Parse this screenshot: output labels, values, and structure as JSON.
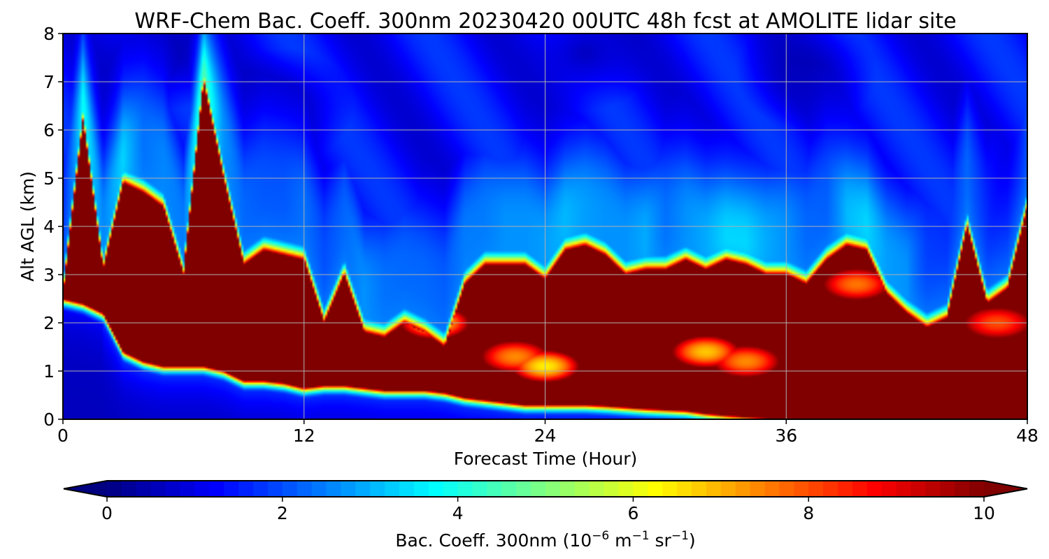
{
  "chart_data": {
    "type": "heatmap",
    "title": "WRF-Chem Bac. Coeff. 300nm  20230420 00UTC 48h fcst at AMOLITE lidar site",
    "xlabel": "Forecast Time (Hour)",
    "ylabel": "Alt AGL (km)",
    "xlim": [
      0,
      48
    ],
    "ylim": [
      0,
      8
    ],
    "x_ticks": [
      "0",
      "12",
      "24",
      "36",
      "48"
    ],
    "y_ticks": [
      "0",
      "1",
      "2",
      "3",
      "4",
      "5",
      "6",
      "7",
      "8"
    ],
    "grid": true,
    "colormap": "jet",
    "colorbar": {
      "orientation": "horizontal",
      "label_parts": [
        "Bac. Coeff. 300nm  (10",
        "−6",
        " m",
        "−1",
        " sr",
        "−1",
        ")"
      ],
      "min": 0,
      "max": 10,
      "ticks": [
        "0",
        "2",
        "4",
        "6",
        "8",
        "10"
      ],
      "extend": "both"
    },
    "x": [
      0,
      1,
      2,
      3,
      4,
      5,
      6,
      7,
      8,
      9,
      10,
      11,
      12,
      13,
      14,
      15,
      16,
      17,
      18,
      19,
      20,
      21,
      22,
      23,
      24,
      25,
      26,
      27,
      28,
      29,
      30,
      31,
      32,
      33,
      34,
      35,
      36,
      37,
      38,
      39,
      40,
      41,
      42,
      43,
      44,
      45,
      46,
      47,
      48
    ],
    "top_of_layer_km": [
      2.6,
      6.2,
      3.1,
      4.9,
      4.7,
      4.4,
      3.0,
      7.0,
      5.0,
      3.2,
      3.5,
      3.4,
      3.3,
      2.0,
      3.0,
      1.8,
      1.7,
      2.0,
      1.8,
      1.5,
      2.8,
      3.2,
      3.2,
      3.2,
      2.9,
      3.5,
      3.6,
      3.4,
      3.0,
      3.1,
      3.1,
      3.3,
      3.1,
      3.3,
      3.2,
      3.0,
      3.0,
      2.8,
      3.3,
      3.6,
      3.5,
      2.6,
      2.2,
      1.9,
      2.1,
      4.0,
      2.4,
      2.7,
      4.4
    ],
    "bottom_of_layer_km": [
      2.5,
      2.4,
      2.2,
      1.4,
      1.2,
      1.1,
      1.1,
      1.1,
      1.0,
      0.8,
      0.8,
      0.75,
      0.65,
      0.7,
      0.7,
      0.65,
      0.6,
      0.6,
      0.6,
      0.55,
      0.45,
      0.4,
      0.35,
      0.3,
      0.3,
      0.3,
      0.3,
      0.28,
      0.25,
      0.22,
      0.2,
      0.18,
      0.12,
      0.08,
      0.05,
      0.02,
      0.0,
      0.0,
      0.0,
      0.0,
      0.0,
      0.0,
      0.0,
      0.0,
      0.0,
      0.0,
      0.0,
      0.0,
      0.0
    ],
    "plume_center_km": [
      5.5,
      7.2,
      5.0,
      6.2,
      6.8,
      6.3,
      5.0,
      7.5,
      6.8,
      5.4,
      5.9,
      5.8,
      5.4,
      4.5,
      5.2,
      3.6,
      3.8,
      4.2,
      4.0,
      3.8,
      4.8,
      5.2,
      5.0,
      5.0,
      4.6,
      5.0,
      5.3,
      5.2,
      4.8,
      4.7,
      5.2,
      5.1,
      4.7,
      4.6,
      4.5,
      4.6,
      4.8,
      5.0,
      5.6,
      5.1,
      4.8,
      4.3,
      4.0,
      4.6,
      5.0,
      6.2,
      5.4,
      7.2,
      6.8
    ],
    "low_value_pockets": [
      {
        "t": 24,
        "z": 1.1,
        "value": 6.4
      },
      {
        "t": 22.5,
        "z": 1.3,
        "value": 7.4
      },
      {
        "t": 32,
        "z": 1.4,
        "value": 6.8
      },
      {
        "t": 34,
        "z": 1.2,
        "value": 7.4
      },
      {
        "t": 39.5,
        "z": 2.8,
        "value": 7.6
      },
      {
        "t": 46.5,
        "z": 2.0,
        "value": 8.0
      },
      {
        "t": 18.5,
        "z": 2.0,
        "value": 6.5
      }
    ],
    "upper_minima": [
      {
        "t": 5,
        "z": 7.6,
        "value": 0.3
      },
      {
        "t": 11,
        "z": 6.5,
        "value": 0.4
      },
      {
        "t": 26,
        "z": 7.6,
        "value": 0.6
      },
      {
        "t": 37,
        "z": 7.2,
        "value": 0.5
      }
    ]
  }
}
